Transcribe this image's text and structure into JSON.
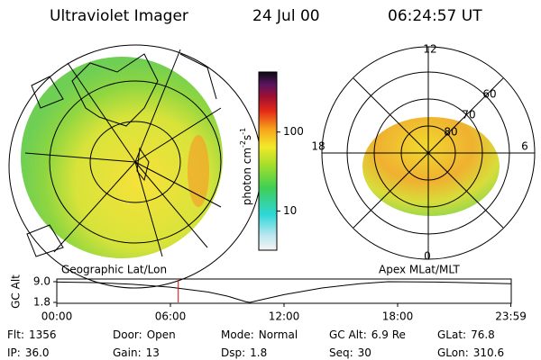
{
  "header": {
    "title": "Ultraviolet Imager",
    "date": "24 Jul 00",
    "time": "06:24:57 UT"
  },
  "colorbar": {
    "label": [
      "photon cm",
      "-2",
      "s",
      "-1"
    ],
    "ticks": [
      10,
      100
    ],
    "lim": [
      3.2,
      575
    ],
    "log": true
  },
  "panels": {
    "left": "Geographic Lat/Lon",
    "right": "Apex MLat/MLT"
  },
  "polar": {
    "mlt_labels": [
      "12",
      "18",
      "6",
      "0"
    ],
    "lat_labels": [
      "60",
      "70",
      "80"
    ]
  },
  "altitude": {
    "label": "GC Alt",
    "x": [
      0,
      2,
      4,
      6,
      8,
      9,
      10,
      10.2,
      11,
      12,
      14,
      16,
      17.5,
      20,
      22,
      23.98
    ],
    "values": [
      8.9,
      8.7,
      8.1,
      7.1,
      5.4,
      4.0,
      2.0,
      1.8,
      3.0,
      4.5,
      6.8,
      8.3,
      9.0,
      8.9,
      8.6,
      8.3
    ],
    "xlim": [
      0,
      24
    ],
    "ylim": [
      1.8,
      9
    ],
    "yticks": [
      {
        "value": 9,
        "label": "9.0"
      },
      {
        "value": 1.8,
        "label": "1.8"
      }
    ],
    "xticks": [
      {
        "value": 0,
        "label": "00:00"
      },
      {
        "value": 6,
        "label": "06:00"
      },
      {
        "value": 12,
        "label": "12:00"
      },
      {
        "value": 18,
        "label": "18:00"
      },
      {
        "value": 23.98,
        "label": "23:59"
      }
    ],
    "current": 6.416
  },
  "info": [
    [
      [
        "Flt:",
        "1356"
      ],
      [
        "Door:",
        "Open"
      ],
      [
        "Mode:",
        "Normal"
      ],
      [
        "GC Alt:",
        "6.9 Re"
      ],
      [
        "GLat:",
        "76.8"
      ]
    ],
    [
      [
        "IP:",
        "36.0"
      ],
      [
        "Gain:",
        "13"
      ],
      [
        "Dsp:",
        "1.8"
      ],
      [
        "Seq:",
        "30"
      ],
      [
        "GLon:",
        "310.6"
      ]
    ]
  ]
}
